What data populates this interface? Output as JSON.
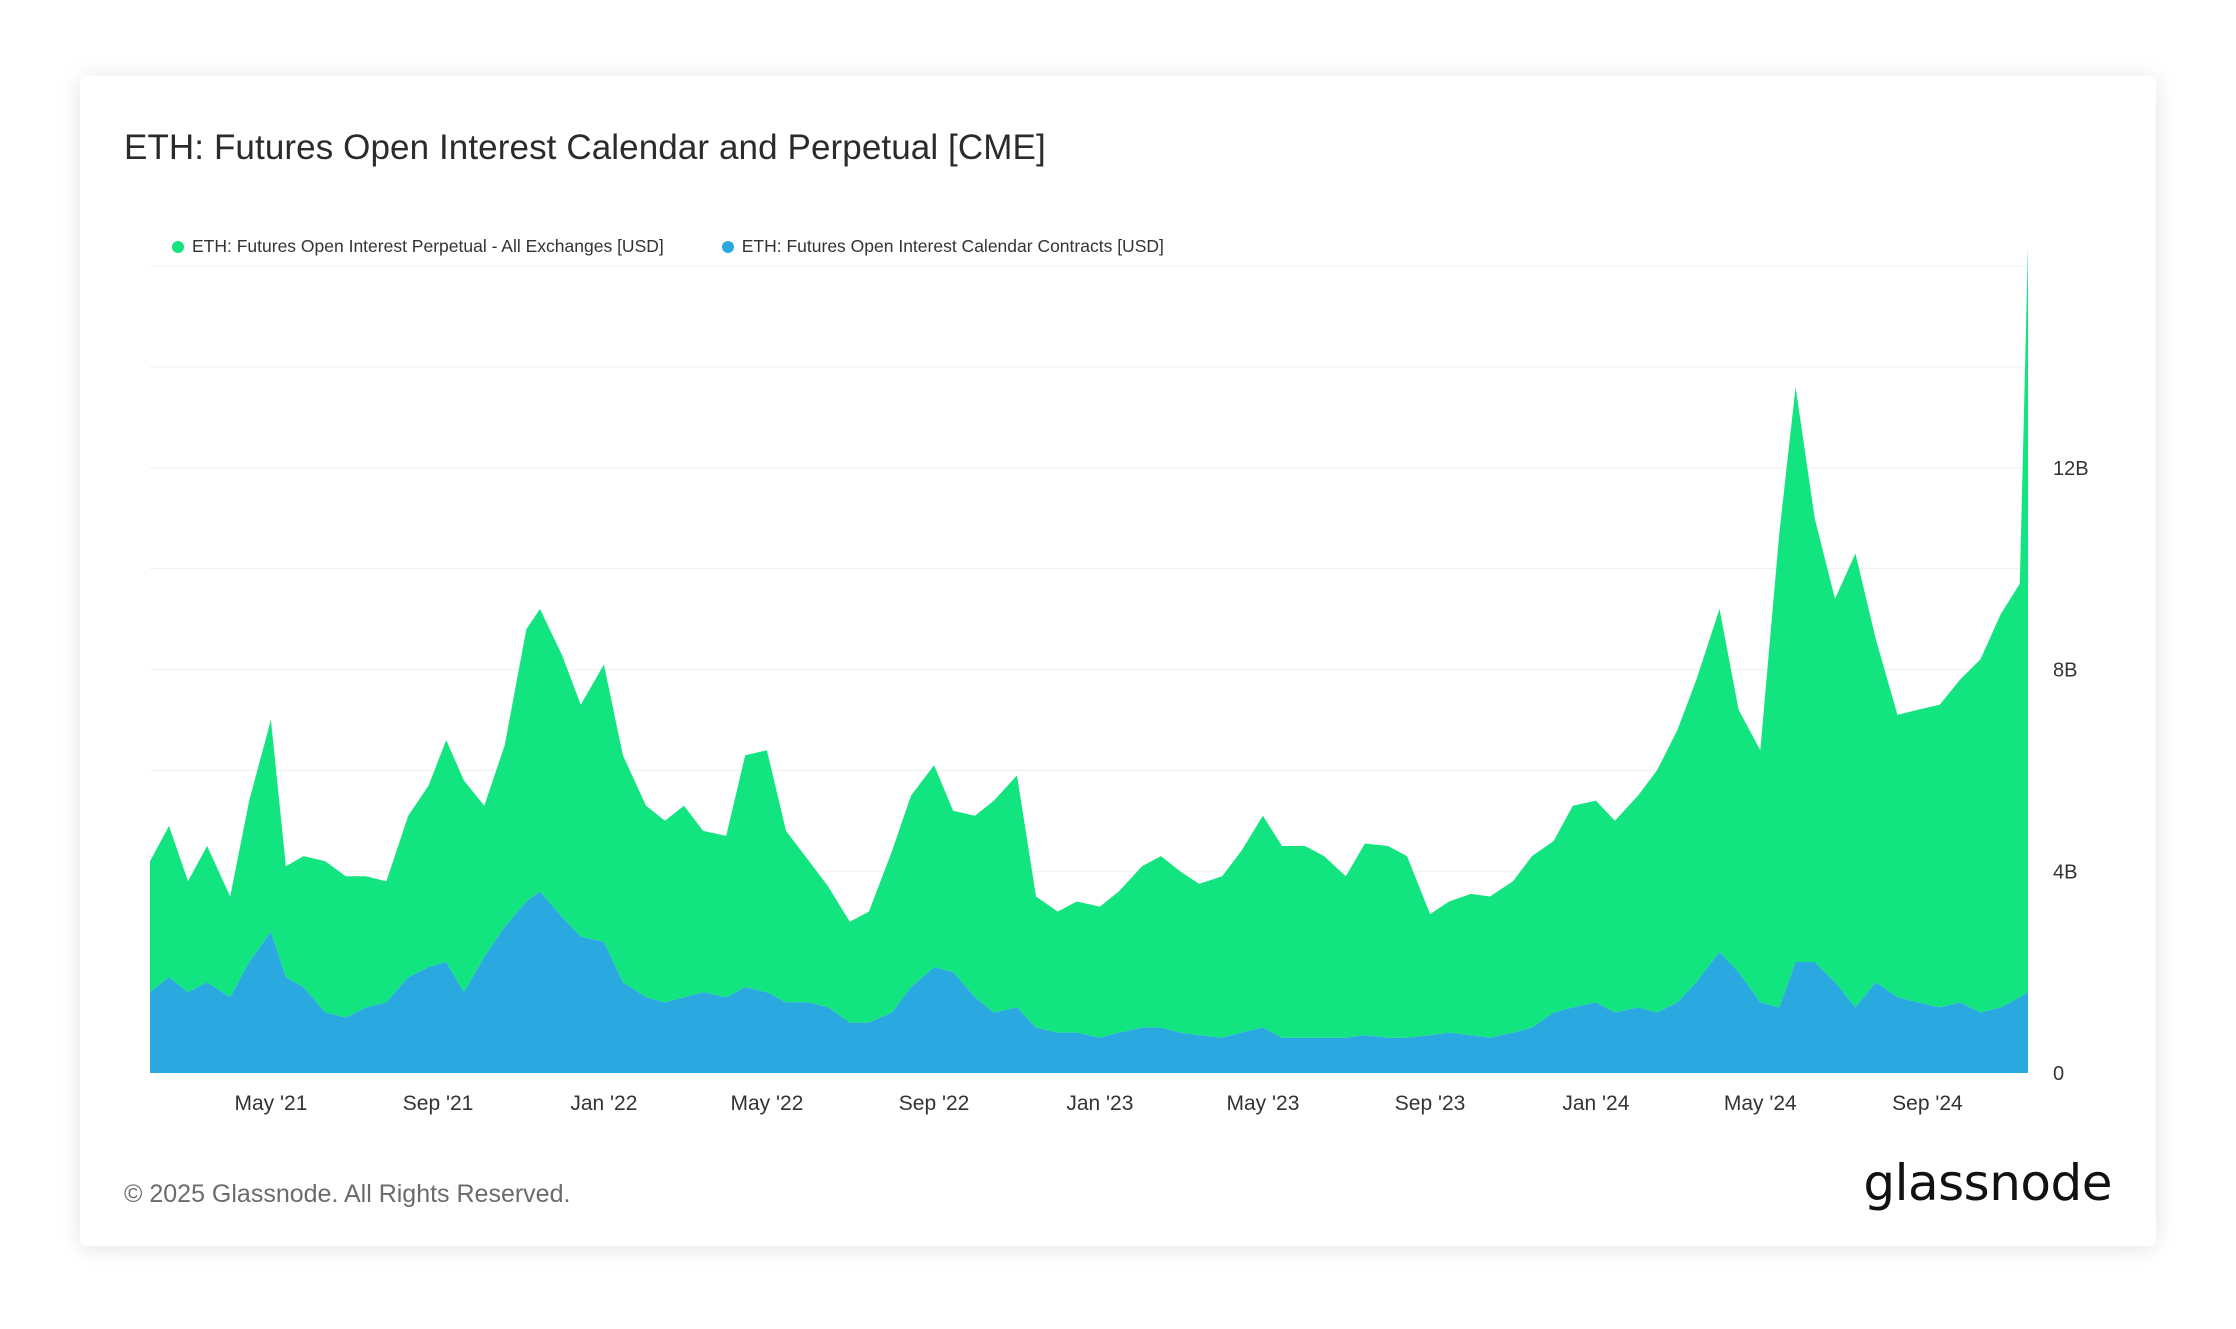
{
  "title": "ETH: Futures Open Interest Calendar and Perpetual [CME]",
  "footer": {
    "copyright": "© 2025 Glassnode. All Rights Reserved.",
    "logo_text": "glassnode"
  },
  "colors": {
    "perpetual": "#12e47f",
    "calendar": "#2aa9e0",
    "grid": "#efefef",
    "axis_text": "#333333"
  },
  "chart_data": {
    "type": "area",
    "stacked": true,
    "x_axis": {
      "range": [
        "2021-02-01",
        "2024-11-14"
      ],
      "tick_labels": [
        "May '21",
        "Sep '21",
        "Jan '22",
        "May '22",
        "Sep '22",
        "Jan '23",
        "May '23",
        "Sep '23",
        "Jan '24",
        "May '24",
        "Sep '24"
      ]
    },
    "y_axis": {
      "position": "right",
      "range": [
        0,
        16000000000
      ],
      "ticks": [
        0,
        4000000000,
        8000000000,
        12000000000
      ],
      "tick_labels": [
        "0",
        "4B",
        "8B",
        "12B"
      ]
    },
    "grid": true,
    "legend_position": "top-left",
    "x": [
      "2021-02-01",
      "2021-02-15",
      "2021-03-01",
      "2021-03-15",
      "2021-04-01",
      "2021-04-15",
      "2021-05-01",
      "2021-05-12",
      "2021-05-25",
      "2021-06-10",
      "2021-06-25",
      "2021-07-10",
      "2021-07-25",
      "2021-08-10",
      "2021-08-25",
      "2021-09-07",
      "2021-09-20",
      "2021-10-05",
      "2021-10-20",
      "2021-11-05",
      "2021-11-15",
      "2021-12-01",
      "2021-12-15",
      "2022-01-01",
      "2022-01-15",
      "2022-02-01",
      "2022-02-15",
      "2022-03-01",
      "2022-03-15",
      "2022-04-01",
      "2022-04-15",
      "2022-05-01",
      "2022-05-15",
      "2022-06-01",
      "2022-06-15",
      "2022-07-01",
      "2022-07-15",
      "2022-08-01",
      "2022-08-15",
      "2022-09-01",
      "2022-09-15",
      "2022-10-01",
      "2022-10-15",
      "2022-11-01",
      "2022-11-15",
      "2022-12-01",
      "2022-12-15",
      "2023-01-01",
      "2023-01-15",
      "2023-02-01",
      "2023-02-15",
      "2023-03-01",
      "2023-03-15",
      "2023-04-01",
      "2023-04-15",
      "2023-05-01",
      "2023-05-15",
      "2023-06-01",
      "2023-06-15",
      "2023-07-01",
      "2023-07-15",
      "2023-08-01",
      "2023-08-15",
      "2023-09-01",
      "2023-09-15",
      "2023-10-01",
      "2023-10-15",
      "2023-11-01",
      "2023-11-15",
      "2023-12-01",
      "2023-12-15",
      "2024-01-01",
      "2024-01-15",
      "2024-02-01",
      "2024-02-15",
      "2024-03-01",
      "2024-03-15",
      "2024-04-01",
      "2024-04-15",
      "2024-05-01",
      "2024-05-15",
      "2024-05-27",
      "2024-06-10",
      "2024-06-25",
      "2024-07-10",
      "2024-07-25",
      "2024-08-10",
      "2024-08-25",
      "2024-09-10",
      "2024-09-25",
      "2024-10-10",
      "2024-10-25",
      "2024-11-08",
      "2024-11-14"
    ],
    "series": [
      {
        "name": "ETH: Futures Open Interest Perpetual - All Exchanges [USD]",
        "values": [
          2600000000.0,
          3000000000.0,
          2200000000.0,
          2700000000.0,
          2000000000.0,
          3200000000.0,
          4200000000.0,
          2200000000.0,
          2600000000.0,
          3000000000.0,
          2800000000.0,
          2600000000.0,
          2400000000.0,
          3200000000.0,
          3600000000.0,
          4400000000.0,
          4200000000.0,
          3000000000.0,
          3600000000.0,
          5400000000.0,
          5600000000.0,
          5200000000.0,
          4600000000.0,
          5500000000.0,
          4500000000.0,
          3800000000.0,
          3600000000.0,
          3800000000.0,
          3200000000.0,
          3200000000.0,
          4600000000.0,
          4800000000.0,
          3400000000.0,
          2800000000.0,
          2400000000.0,
          2000000000.0,
          2200000000.0,
          3200000000.0,
          3800000000.0,
          4000000000.0,
          3200000000.0,
          3600000000.0,
          4200000000.0,
          4600000000.0,
          2600000000.0,
          2400000000.0,
          2600000000.0,
          2600000000.0,
          2800000000.0,
          3200000000.0,
          3400000000.0,
          3200000000.0,
          3000000000.0,
          3200000000.0,
          3600000000.0,
          4200000000.0,
          3800000000.0,
          3800000000.0,
          3600000000.0,
          3200000000.0,
          3800000000.0,
          3800000000.0,
          3600000000.0,
          2400000000.0,
          2600000000.0,
          2800000000.0,
          2800000000.0,
          3000000000.0,
          3400000000.0,
          3400000000.0,
          4000000000.0,
          4000000000.0,
          3800000000.0,
          4200000000.0,
          4800000000.0,
          5400000000.0,
          6000000000.0,
          6800000000.0,
          5200000000.0,
          5000000000.0,
          9400000000.0,
          11400000000.0,
          8800000000.0,
          7600000000.0,
          9000000000.0,
          6800000000.0,
          5600000000.0,
          5800000000.0,
          6000000000.0,
          6400000000.0,
          7000000000.0,
          7800000000.0,
          8200000000.0,
          14800000000.0
        ]
      },
      {
        "name": "ETH: Futures Open Interest Calendar Contracts [USD]",
        "values": [
          1600000000.0,
          1900000000.0,
          1600000000.0,
          1800000000.0,
          1500000000.0,
          2200000000.0,
          2800000000.0,
          1900000000.0,
          1700000000.0,
          1200000000.0,
          1100000000.0,
          1300000000.0,
          1400000000.0,
          1900000000.0,
          2100000000.0,
          2200000000.0,
          1600000000.0,
          2300000000.0,
          2900000000.0,
          3400000000.0,
          3600000000.0,
          3100000000.0,
          2700000000.0,
          2600000000.0,
          1800000000.0,
          1500000000.0,
          1400000000.0,
          1500000000.0,
          1600000000.0,
          1500000000.0,
          1700000000.0,
          1600000000.0,
          1400000000.0,
          1400000000.0,
          1300000000.0,
          1000000000.0,
          1000000000.0,
          1200000000.0,
          1700000000.0,
          2100000000.0,
          2000000000.0,
          1500000000.0,
          1200000000.0,
          1300000000.0,
          900000000.0,
          800000000.0,
          800000000.0,
          700000000.0,
          800000000.0,
          900000000.0,
          900000000.0,
          800000000.0,
          750000000.0,
          700000000.0,
          800000000.0,
          900000000.0,
          700000000.0,
          700000000.0,
          700000000.0,
          700000000.0,
          750000000.0,
          700000000.0,
          700000000.0,
          750000000.0,
          800000000.0,
          750000000.0,
          700000000.0,
          800000000.0,
          900000000.0,
          1200000000.0,
          1300000000.0,
          1400000000.0,
          1200000000.0,
          1300000000.0,
          1200000000.0,
          1400000000.0,
          1800000000.0,
          2400000000.0,
          2000000000.0,
          1400000000.0,
          1300000000.0,
          2200000000.0,
          2200000000.0,
          1800000000.0,
          1300000000.0,
          1800000000.0,
          1500000000.0,
          1400000000.0,
          1300000000.0,
          1400000000.0,
          1200000000.0,
          1300000000.0,
          1500000000.0,
          1600000000.0
        ]
      }
    ]
  }
}
